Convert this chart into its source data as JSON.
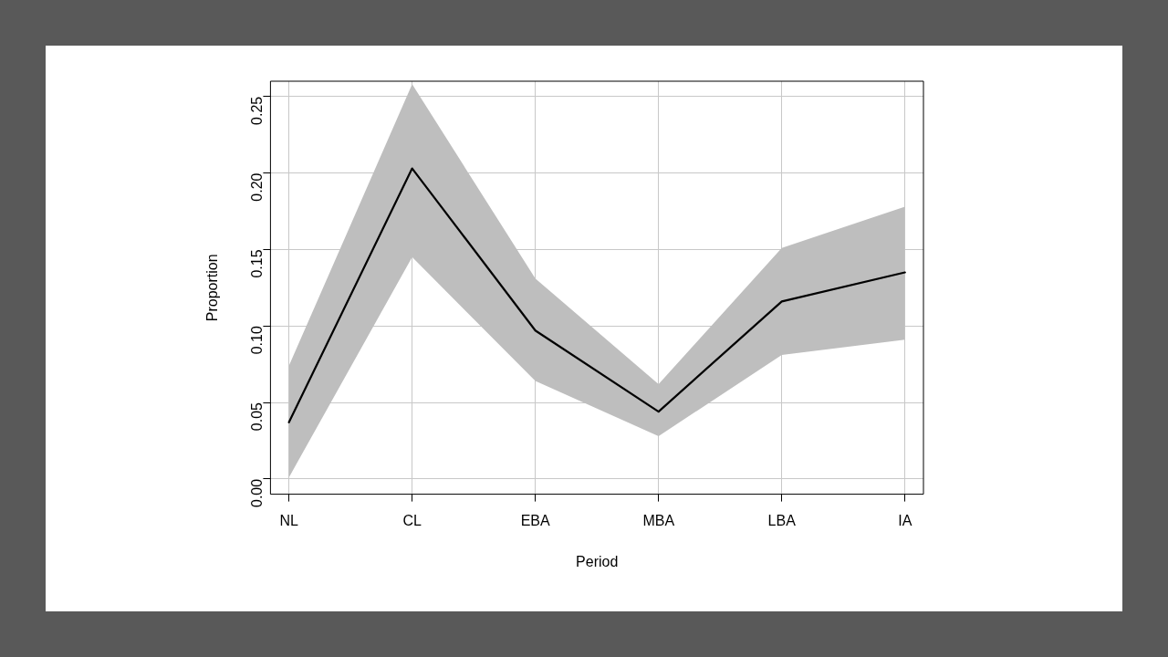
{
  "chart_data": {
    "type": "line",
    "xlabel": "Period",
    "ylabel": "Proportion",
    "categories": [
      "NL",
      "CL",
      "EBA",
      "MBA",
      "LBA",
      "IA"
    ],
    "series": [
      {
        "color": "#000000",
        "values": [
          0.037,
          0.203,
          0.097,
          0.044,
          0.116,
          0.135
        ],
        "lower": [
          0.001,
          0.145,
          0.064,
          0.028,
          0.081,
          0.091
        ],
        "upper": [
          0.074,
          0.258,
          0.131,
          0.062,
          0.151,
          0.178
        ]
      }
    ],
    "ylim": [
      -0.01,
      0.26
    ],
    "yticks": [
      {
        "value": 0,
        "label": "0.00"
      },
      {
        "value": 0.05,
        "label": "0.05"
      },
      {
        "value": 0.1,
        "label": "0.10"
      },
      {
        "value": 0.15,
        "label": "0.15"
      },
      {
        "value": 0.2,
        "label": "0.20"
      },
      {
        "value": 0.25,
        "label": "0.25"
      }
    ],
    "grid": true,
    "legend": false,
    "marker": "none",
    "line_style": "solid"
  }
}
